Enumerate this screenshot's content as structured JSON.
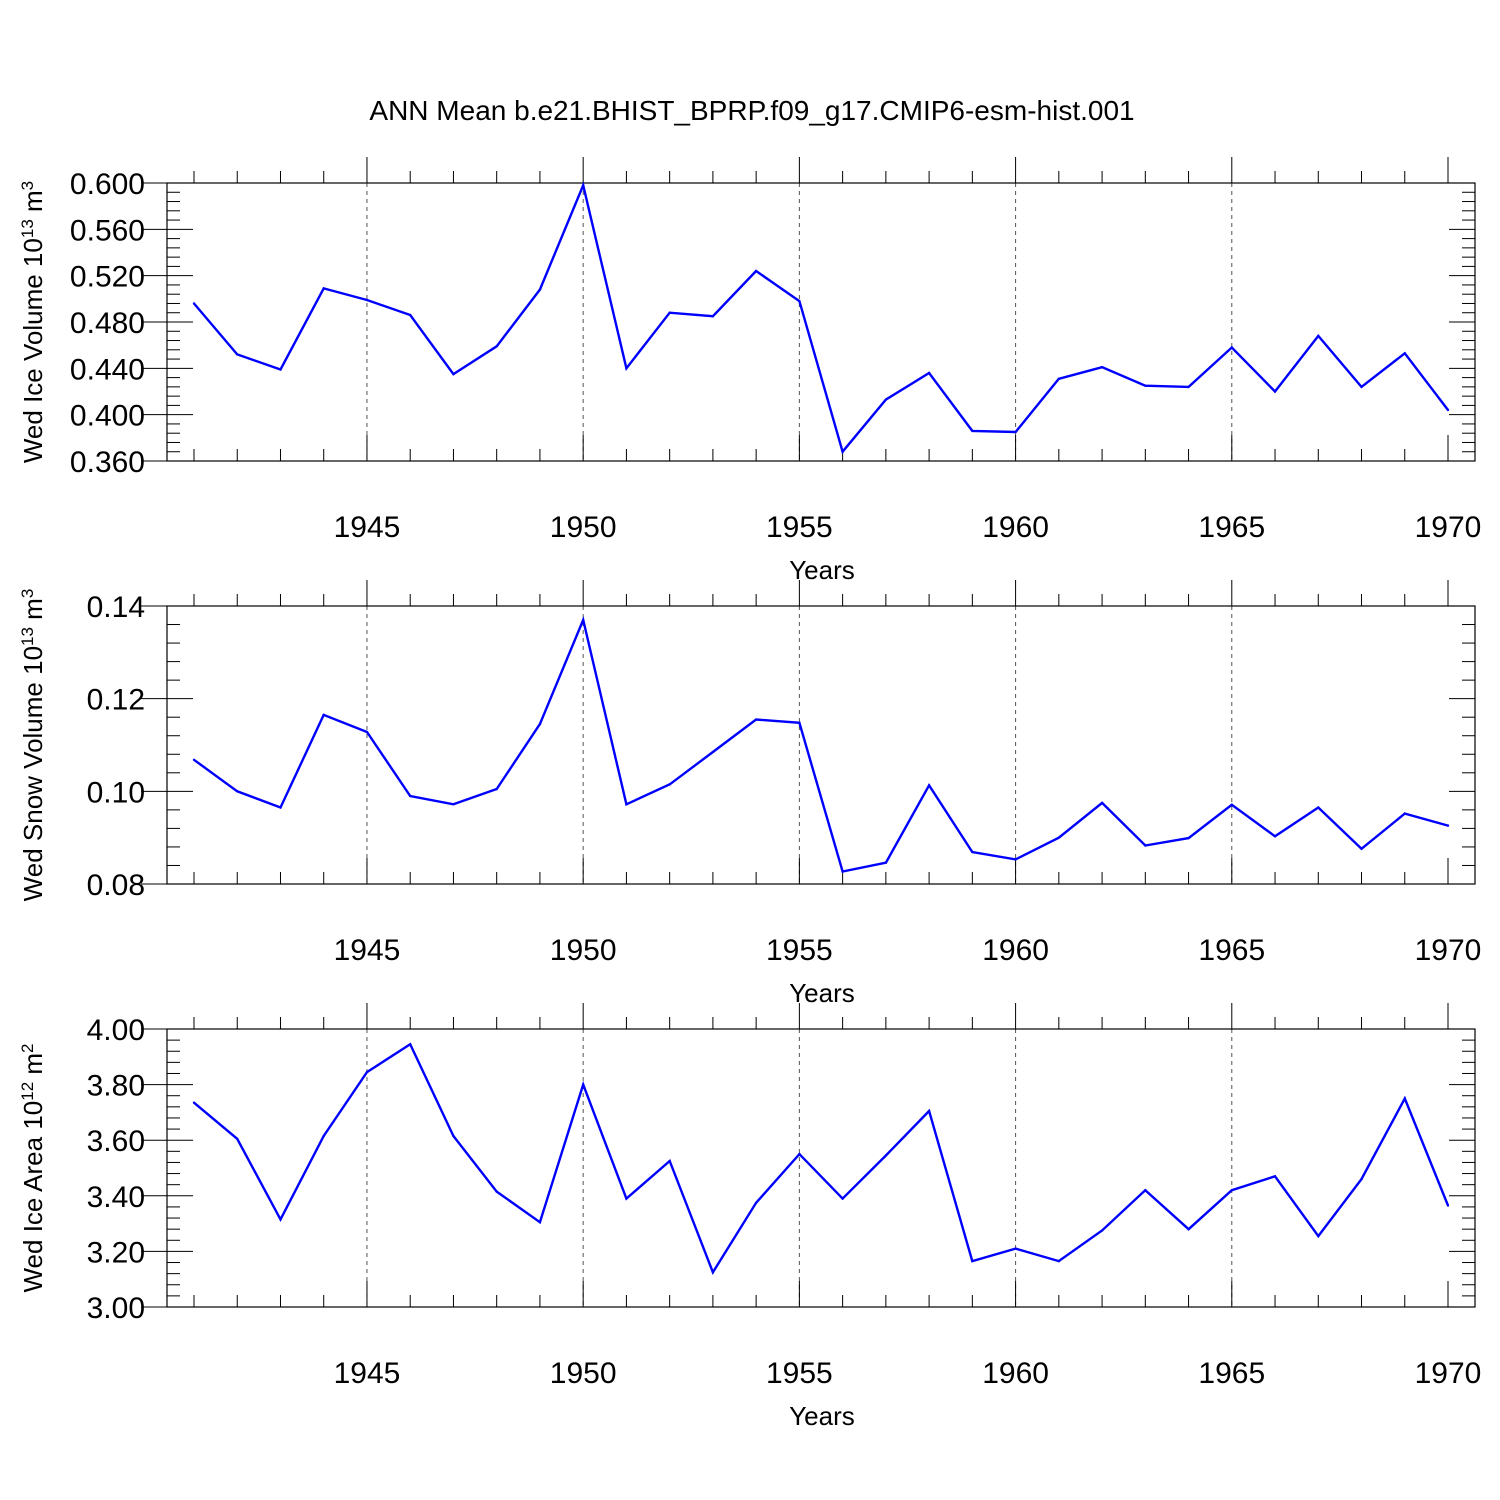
{
  "title": "ANN Mean b.e21.BHIST_BPRP.f09_g17.CMIP6-esm-hist.001",
  "chart_data": [
    {
      "type": "line",
      "ylabel": "Wed Ice Volume 10^13 m^3",
      "ylabel_main": "Wed Ice Volume 10",
      "ylabel_exp": "13",
      "ylabel_unit": " m",
      "ylabel_unit_exp": "3",
      "xlabel": "Years",
      "xlim": [
        1941,
        1970
      ],
      "ylim": [
        0.36,
        0.6
      ],
      "yticks": [
        0.36,
        0.4,
        0.44,
        0.48,
        0.52,
        0.56,
        0.6
      ],
      "ytick_labels": [
        "0.360",
        "0.400",
        "0.440",
        "0.480",
        "0.520",
        "0.560",
        "0.600"
      ],
      "xticks": [
        1945,
        1950,
        1955,
        1960,
        1965,
        1970
      ],
      "xtick_labels": [
        "1945",
        "1950",
        "1955",
        "1960",
        "1965",
        "1970"
      ],
      "grid": "vertical dashed at major x ticks",
      "color": "#0000ff",
      "x": [
        1941,
        1942,
        1943,
        1944,
        1945,
        1946,
        1947,
        1948,
        1949,
        1950,
        1951,
        1952,
        1953,
        1954,
        1955,
        1956,
        1957,
        1958,
        1959,
        1960,
        1961,
        1962,
        1963,
        1964,
        1965,
        1966,
        1967,
        1968,
        1969,
        1970
      ],
      "values": [
        0.496,
        0.452,
        0.439,
        0.509,
        0.499,
        0.486,
        0.435,
        0.459,
        0.508,
        0.598,
        0.44,
        0.488,
        0.485,
        0.524,
        0.498,
        0.368,
        0.413,
        0.436,
        0.386,
        0.385,
        0.431,
        0.441,
        0.425,
        0.424,
        0.458,
        0.42,
        0.468,
        0.424,
        0.453,
        0.404
      ]
    },
    {
      "type": "line",
      "ylabel": "Wed Snow Volume 10^13 m^3",
      "ylabel_main": "Wed Snow Volume 10",
      "ylabel_exp": "13",
      "ylabel_unit": " m",
      "ylabel_unit_exp": "3",
      "xlabel": "Years",
      "xlim": [
        1941,
        1970
      ],
      "ylim": [
        0.08,
        0.14
      ],
      "yticks": [
        0.08,
        0.1,
        0.12,
        0.14
      ],
      "ytick_labels": [
        "0.08",
        "0.10",
        "0.12",
        "0.14"
      ],
      "xticks": [
        1945,
        1950,
        1955,
        1960,
        1965,
        1970
      ],
      "xtick_labels": [
        "1945",
        "1950",
        "1955",
        "1960",
        "1965",
        "1970"
      ],
      "grid": "vertical dashed at major x ticks",
      "color": "#0000ff",
      "x": [
        1941,
        1942,
        1943,
        1944,
        1945,
        1946,
        1947,
        1948,
        1949,
        1950,
        1951,
        1952,
        1953,
        1954,
        1955,
        1956,
        1957,
        1958,
        1959,
        1960,
        1961,
        1962,
        1963,
        1964,
        1965,
        1966,
        1967,
        1968,
        1969,
        1970
      ],
      "values": [
        0.1068,
        0.1,
        0.0965,
        0.1165,
        0.1128,
        0.099,
        0.0972,
        0.1005,
        0.1145,
        0.137,
        0.0972,
        0.1015,
        0.1085,
        0.1155,
        0.1148,
        0.0827,
        0.0846,
        0.1013,
        0.0869,
        0.0853,
        0.09,
        0.0975,
        0.0883,
        0.0899,
        0.0971,
        0.0903,
        0.0965,
        0.0876,
        0.0952,
        0.0926
      ]
    },
    {
      "type": "line",
      "ylabel": "Wed Ice Area 10^12 m^2",
      "ylabel_main": "Wed Ice Area 10",
      "ylabel_exp": "12",
      "ylabel_unit": " m",
      "ylabel_unit_exp": "2",
      "xlabel": "Years",
      "xlim": [
        1941,
        1970
      ],
      "ylim": [
        3.0,
        4.0
      ],
      "yticks": [
        3.0,
        3.2,
        3.4,
        3.6,
        3.8,
        4.0
      ],
      "ytick_labels": [
        "3.00",
        "3.20",
        "3.40",
        "3.60",
        "3.80",
        "4.00"
      ],
      "xticks": [
        1945,
        1950,
        1955,
        1960,
        1965,
        1970
      ],
      "xtick_labels": [
        "1945",
        "1950",
        "1955",
        "1960",
        "1965",
        "1970"
      ],
      "grid": "vertical dashed at major x ticks",
      "color": "#0000ff",
      "x": [
        1941,
        1942,
        1943,
        1944,
        1945,
        1946,
        1947,
        1948,
        1949,
        1950,
        1951,
        1952,
        1953,
        1954,
        1955,
        1956,
        1957,
        1958,
        1959,
        1960,
        1961,
        1962,
        1963,
        1964,
        1965,
        1966,
        1967,
        1968,
        1969,
        1970
      ],
      "values": [
        3.735,
        3.605,
        3.315,
        3.615,
        3.845,
        3.945,
        3.615,
        3.415,
        3.305,
        3.8,
        3.39,
        3.525,
        3.125,
        3.375,
        3.55,
        3.39,
        3.545,
        3.705,
        3.165,
        3.21,
        3.165,
        3.275,
        3.42,
        3.28,
        3.42,
        3.47,
        3.255,
        3.46,
        3.75,
        3.365
      ]
    }
  ]
}
